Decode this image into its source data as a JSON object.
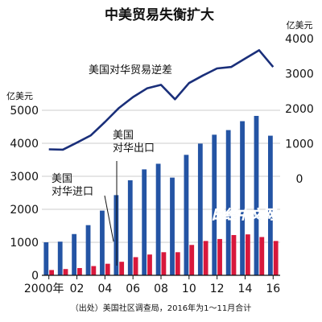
{
  "chart_data": {
    "type": "bar",
    "title": "中美贸易失衡扩大",
    "x": [
      2000,
      2001,
      2002,
      2003,
      2004,
      2005,
      2006,
      2007,
      2008,
      2009,
      2010,
      2011,
      2012,
      2013,
      2014,
      2015,
      2016
    ],
    "x_tick_labels": [
      "2000年",
      "02",
      "04",
      "06",
      "08",
      "10",
      "12",
      "14",
      "16"
    ],
    "x_tick_years": [
      2000,
      2002,
      2004,
      2006,
      2008,
      2010,
      2012,
      2014,
      2016
    ],
    "left_axis": {
      "unit": "亿美元",
      "ylim": [
        0,
        5000
      ],
      "ticks": [
        "0",
        "1000",
        "2000",
        "3000",
        "4000",
        "5000"
      ]
    },
    "right_axis": {
      "unit": "亿美元",
      "ylim": [
        -2000,
        4000
      ],
      "ticks": [
        "0",
        "1000",
        "2000",
        "3000",
        "4000"
      ]
    },
    "series": [
      {
        "name": "美国对华进口",
        "kind": "bar",
        "axis": "left",
        "color": "#2454a4",
        "values": [
          1000,
          1020,
          1250,
          1520,
          1960,
          2430,
          2880,
          3210,
          3380,
          2960,
          3650,
          3990,
          4260,
          4400,
          4670,
          4830,
          4230
        ]
      },
      {
        "name": "美国对华出口",
        "kind": "bar",
        "axis": "left",
        "color": "#d8183c",
        "values": [
          160,
          190,
          220,
          280,
          350,
          410,
          550,
          630,
          700,
          700,
          920,
          1040,
          1100,
          1220,
          1240,
          1160,
          1040
        ]
      },
      {
        "name": "美国对华贸易逆差",
        "kind": "line",
        "axis": "right",
        "color": "#1a2f7a",
        "values": [
          840,
          830,
          1030,
          1240,
          1620,
          2020,
          2330,
          2580,
          2680,
          2270,
          2730,
          2950,
          3150,
          3190,
          3430,
          3670,
          3190
        ]
      }
    ],
    "annotations": {
      "source": "（出处）美国社区调查局，2016年为1～11月合计"
    },
    "watermark": "日经中文网",
    "grid": true
  }
}
